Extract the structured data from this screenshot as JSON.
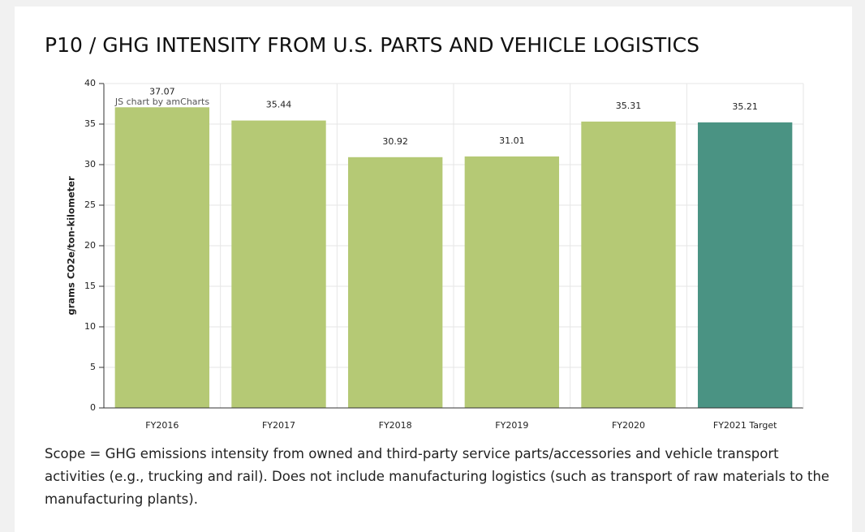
{
  "chart_data": {
    "type": "bar",
    "title": "P10 / GHG INTENSITY FROM U.S. PARTS AND VEHICLE LOGISTICS",
    "credit": "JS chart by amCharts",
    "y_label": "grams CO2e/ton-kilometer",
    "categories": [
      "FY2016",
      "FY2017",
      "FY2018",
      "FY2019",
      "FY2020",
      "FY2021 Target"
    ],
    "values": [
      37.07,
      35.44,
      30.92,
      31.01,
      35.31,
      35.21
    ],
    "colors": [
      "#b5c975",
      "#b5c975",
      "#b5c975",
      "#b5c975",
      "#b5c975",
      "#4a9383"
    ],
    "ylim": [
      0,
      40
    ],
    "yticks": [
      0,
      5,
      10,
      15,
      20,
      25,
      30,
      35,
      40
    ],
    "grid": true,
    "caption": "Scope = GHG emissions intensity from owned and third-party service parts/accessories and vehicle transport activities (e.g., trucking and rail). Does not include manufacturing logistics (such as transport of raw materials to the manufacturing plants)."
  }
}
